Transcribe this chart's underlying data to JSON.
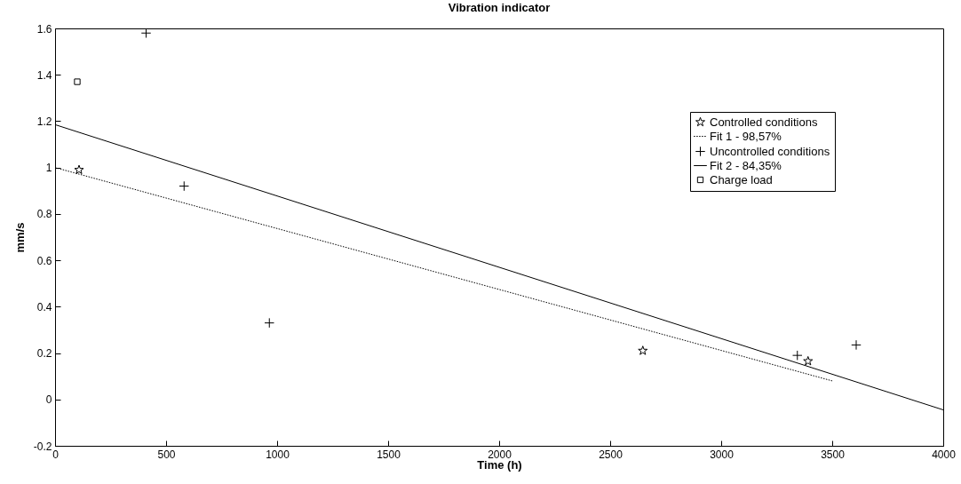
{
  "chart_data": {
    "type": "scatter",
    "title": "Vibration indicator",
    "xlabel": "Time (h)",
    "ylabel": "mm/s",
    "xlim": [
      0,
      4000
    ],
    "xticks": [
      0,
      500,
      1000,
      1500,
      2000,
      2500,
      3000,
      3500,
      4000
    ],
    "ylim": [
      -0.2,
      1.6
    ],
    "yticks": [
      -0.2,
      0,
      0.2,
      0.4,
      0.6,
      0.8,
      1,
      1.2,
      1.4,
      1.6
    ],
    "grid": false,
    "legend": "right",
    "series": [
      {
        "name": "Controlled conditions",
        "type": "scatter",
        "marker": "star",
        "color": "#000000",
        "x": [
          108,
          2647,
          3391
        ],
        "values": [
          0.99,
          0.21,
          0.165
        ]
      },
      {
        "name": "Fit 1 - 98,57%",
        "type": "line",
        "line_style": "dotted",
        "marker": "none",
        "color": "#000000",
        "x": [
          0,
          3500
        ],
        "values": [
          1.0,
          0.08
        ]
      },
      {
        "name": "Uncontrolled conditions",
        "type": "scatter",
        "marker": "cross",
        "color": "#000000",
        "x": [
          410,
          581,
          965,
          3343,
          3608
        ],
        "values": [
          1.58,
          0.92,
          0.33,
          0.19,
          0.235
        ]
      },
      {
        "name": "Fit 2 - 84,35%",
        "type": "line",
        "line_style": "solid",
        "marker": "none",
        "color": "#000000",
        "x": [
          0,
          4000
        ],
        "values": [
          1.185,
          -0.045
        ]
      },
      {
        "name": "Charge load",
        "type": "scatter",
        "marker": "square",
        "color": "#000000",
        "x": [
          100
        ],
        "values": [
          1.37
        ]
      }
    ]
  }
}
